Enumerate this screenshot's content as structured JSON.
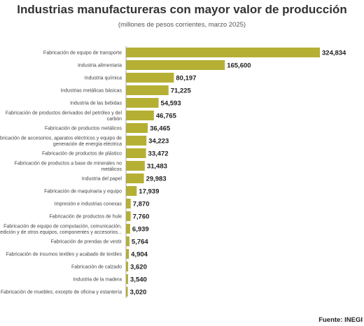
{
  "header": {
    "title": "Industrias manufactureras con mayor valor de producción",
    "subtitle": "(millones de pesos corrientes, marzo 2025)"
  },
  "footer": {
    "source": "Fuente: INEGI"
  },
  "chart_data": {
    "type": "bar",
    "orientation": "horizontal",
    "title": "Industrias manufactureras con mayor valor de producción",
    "subtitle": "(millones de pesos corrientes, marzo 2025)",
    "grid": false,
    "bar_color": "#b5b034",
    "categories": [
      "Fabricación de equipo de transporte",
      "Industria alimentaria",
      "Industria química",
      "Industrias metálicas básicas",
      "Industria de las bebidas",
      "Fabricación de productos derivados del petróleo y del carbón",
      "Fabricación de productos metálicos",
      "Fabricación de accesorios, aparatos eléctricos y equipo de generación de energía eléctrica",
      "Fabricación de productos de plástico",
      "Fabricación de productos a base de minerales no metálicos",
      "Industria del papel",
      "Fabricación de maquinaria y equipo",
      "Impresión e industrias conexas",
      "Fabricación de productos de hule",
      "Fabricación de equipo de computación, comunicación, medición y de otros equipos, componentes y accesorios...",
      "Fabricación de prendas de vestir",
      "Fabricación de insumos textiles y acabado de textiles",
      "Fabricación de calzado",
      "Industria de la madera",
      "Fabricación de muebles, excepto de oficina y estantería"
    ],
    "category_lines": [
      [
        "Fabricación de equipo de transporte"
      ],
      [
        "Industria alimentaria"
      ],
      [
        "Industria química"
      ],
      [
        "Industrias metálicas básicas"
      ],
      [
        "Industria de las bebidas"
      ],
      [
        "Fabricación de productos derivados del petróleo y del",
        "carbón"
      ],
      [
        "Fabricación de productos metálicos"
      ],
      [
        "Fabricación de accesorios, aparatos eléctricos y equipo de",
        "generación de energía eléctrica"
      ],
      [
        "Fabricación de productos de plástico"
      ],
      [
        "Fabricación de productos a base de minerales no",
        "metálicos"
      ],
      [
        "Industria del papel"
      ],
      [
        "Fabricación de maquinaria y equipo"
      ],
      [
        "Impresión e industrias conexas"
      ],
      [
        "Fabricación de productos de hule"
      ],
      [
        "Fabricación de equipo de computación, comunicación,",
        "medición y de otros equipos, componentes y accesorios..."
      ],
      [
        "Fabricación de prendas de vestir"
      ],
      [
        "Fabricación de insumos textiles y acabado de textiles"
      ],
      [
        "Fabricación de calzado"
      ],
      [
        "Industria de la madera"
      ],
      [
        "Fabricación de muebles, excepto de oficina y estantería"
      ]
    ],
    "values": [
      324834,
      165600,
      80197,
      71225,
      54593,
      46765,
      36465,
      34223,
      33472,
      31483,
      29983,
      17939,
      7870,
      7760,
      6939,
      5764,
      4904,
      3620,
      3540,
      3020
    ],
    "value_labels": [
      "324,834",
      "165,600",
      "80,197",
      "71,225",
      "54,593",
      "46,765",
      "36,465",
      "34,223",
      "33,472",
      "31,483",
      "29,983",
      "17,939",
      "7,870",
      "7,760",
      "6,939",
      "5,764",
      "4,904",
      "3,620",
      "3,540",
      "3,020"
    ]
  }
}
